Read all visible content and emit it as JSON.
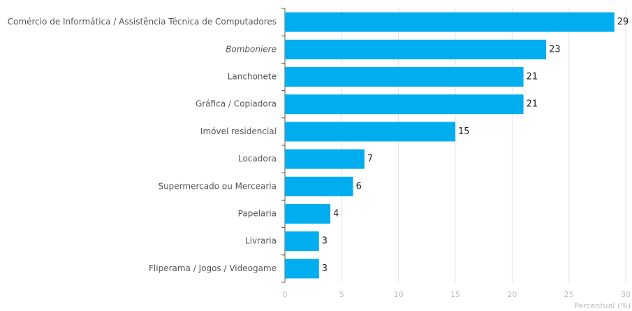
{
  "chart_data": {
    "type": "bar",
    "orientation": "horizontal",
    "x_label": "Percentual (%)",
    "categories": [
      "Comércio de Informática / Assistência Técnica de Computadores",
      "Bomboniere",
      "Lanchonete",
      "Gráfica / Copiadora",
      "Imóvel residencial",
      "Locadora",
      "Supermercado ou Mercearia",
      "Papelaria",
      "Livraria",
      "Fliperama / Jogos / Videogame"
    ],
    "values": [
      29,
      23,
      21,
      21,
      15,
      7,
      6,
      4,
      3,
      3
    ],
    "color": "#00aeef",
    "xlim": [
      0,
      30
    ],
    "xticks": [
      0,
      5,
      10,
      15,
      20,
      25,
      30
    ],
    "grid": true
  }
}
